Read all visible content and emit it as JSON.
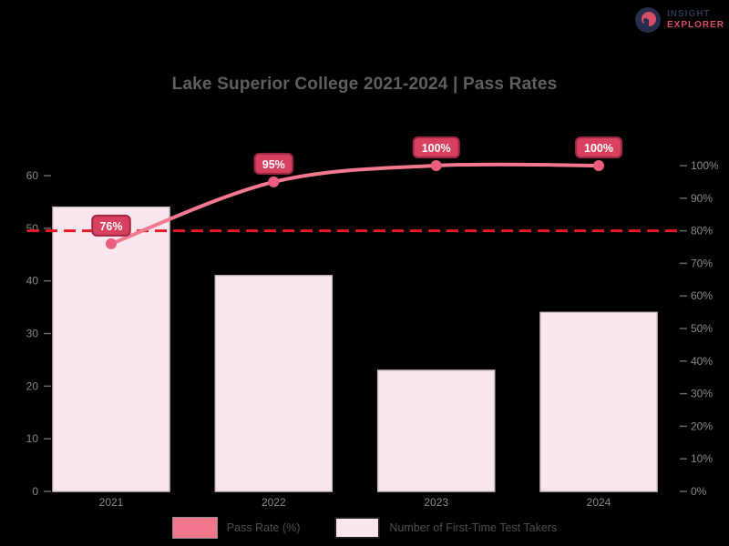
{
  "logo": {
    "line1": "INSIGHT",
    "line2": "EXPLORER"
  },
  "colors": {
    "background": "#000000",
    "bar_fill": "#fae6ee",
    "bar_border": "#cfc3c9",
    "line": "#f4798f",
    "marker": "#ec5e7e",
    "badge_fill": "#d84060",
    "badge_border": "#9e2644",
    "badge_text": "#ffffff",
    "target_line": "#e51a23",
    "axis_text": "#888888",
    "title_text": "#5f5f5f",
    "legend_text": "#4d4d4d"
  },
  "chart_data": {
    "type": "bar+line",
    "title": "Lake Superior College 2021-2024 | Pass Rates",
    "categories": [
      "2021",
      "2022",
      "2023",
      "2024"
    ],
    "series": [
      {
        "name": "Pass Rate (%)",
        "type": "line",
        "axis": "right",
        "values": [
          76,
          95,
          100,
          100
        ],
        "point_labels": [
          "76%",
          "95%",
          "100%",
          "100%"
        ]
      },
      {
        "name": "Number of First-Time Test Takers",
        "type": "bar",
        "axis": "left",
        "values": [
          54,
          41,
          23,
          34
        ]
      }
    ],
    "left_axis": {
      "min": 0,
      "max": 60,
      "step": 10,
      "suffix": ""
    },
    "right_axis": {
      "min": 0,
      "max": 100,
      "step": 10,
      "suffix": "%"
    },
    "target_line": {
      "value": 80,
      "axis": "right",
      "style": "dashed"
    },
    "grid": false,
    "legend_position": "bottom"
  }
}
